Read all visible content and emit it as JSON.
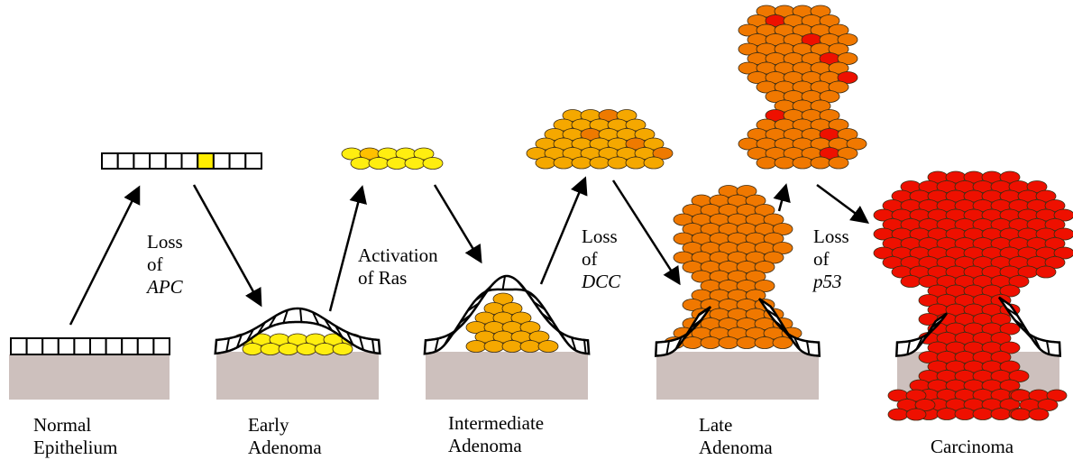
{
  "stages": [
    {
      "name": [
        "Normal",
        "Epithelium"
      ]
    },
    {
      "name": [
        "Early",
        "Adenoma"
      ]
    },
    {
      "name": [
        "Intermediate",
        "Adenoma"
      ]
    },
    {
      "name": [
        "Late",
        "Adenoma"
      ]
    },
    {
      "name": [
        "Carcinoma"
      ]
    }
  ],
  "events": [
    {
      "lines": [
        "Loss",
        "of"
      ],
      "gene": "APC"
    },
    {
      "lines": [
        "Activation",
        "of Ras"
      ]
    },
    {
      "lines": [
        "Loss",
        "of"
      ],
      "gene": "DCC"
    },
    {
      "lines": [
        "Loss",
        "of"
      ],
      "gene": "p53"
    }
  ]
}
